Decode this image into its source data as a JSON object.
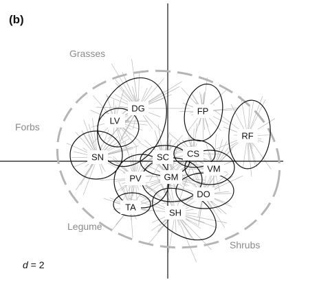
{
  "panel_label": "(b)",
  "group_labels": {
    "grasses": "Grasses",
    "forbs": "Forbs",
    "legume": "Legume",
    "shrubs": "Shrubs"
  },
  "scale": {
    "var": "d",
    "rest": " = 2"
  },
  "nodes": [
    {
      "id": "DG",
      "label": "DG"
    },
    {
      "id": "LV",
      "label": "LV"
    },
    {
      "id": "FP",
      "label": "FP"
    },
    {
      "id": "RF",
      "label": "RF"
    },
    {
      "id": "SN",
      "label": "SN"
    },
    {
      "id": "SC",
      "label": "SC"
    },
    {
      "id": "CS",
      "label": "CS"
    },
    {
      "id": "VM",
      "label": "VM"
    },
    {
      "id": "PV",
      "label": "PV"
    },
    {
      "id": "GM",
      "label": "GM"
    },
    {
      "id": "DO",
      "label": "DO"
    },
    {
      "id": "TA",
      "label": "TA"
    },
    {
      "id": "SH",
      "label": "SH"
    }
  ]
}
